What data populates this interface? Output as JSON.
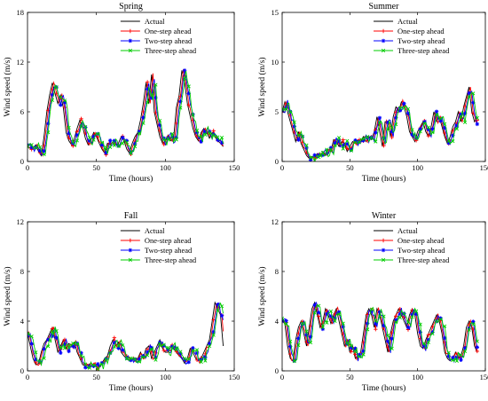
{
  "chart_data": [
    {
      "type": "line",
      "title": "Spring",
      "xlabel": "Time (hours)",
      "ylabel": "Wind speed (m/s)",
      "xlim": [
        0,
        150
      ],
      "ylim": [
        0,
        18
      ],
      "xticks": [
        0,
        50,
        100,
        150
      ],
      "yticks": [
        0,
        6,
        12,
        18
      ],
      "grid": false,
      "legend_position": "top-right",
      "anchors": [
        [
          0,
          1.8
        ],
        [
          3,
          1.5
        ],
        [
          6,
          2.0
        ],
        [
          8,
          1.2
        ],
        [
          10,
          0.7
        ],
        [
          12,
          3.0
        ],
        [
          14,
          6.0
        ],
        [
          16,
          8.0
        ],
        [
          18,
          9.5
        ],
        [
          20,
          8.2
        ],
        [
          22,
          7.0
        ],
        [
          24,
          8.0
        ],
        [
          26,
          6.5
        ],
        [
          28,
          3.5
        ],
        [
          30,
          2.5
        ],
        [
          32,
          2.0
        ],
        [
          34,
          2.8
        ],
        [
          36,
          4.0
        ],
        [
          38,
          5.0
        ],
        [
          40,
          4.2
        ],
        [
          42,
          2.8
        ],
        [
          44,
          2.0
        ],
        [
          46,
          2.6
        ],
        [
          48,
          3.5
        ],
        [
          50,
          3.0
        ],
        [
          52,
          2.2
        ],
        [
          54,
          1.5
        ],
        [
          56,
          1.0
        ],
        [
          58,
          2.2
        ],
        [
          60,
          2.0
        ],
        [
          62,
          2.4
        ],
        [
          64,
          2.0
        ],
        [
          66,
          2.2
        ],
        [
          68,
          3.0
        ],
        [
          70,
          2.5
        ],
        [
          72,
          1.5
        ],
        [
          74,
          1.0
        ],
        [
          76,
          2.2
        ],
        [
          78,
          3.0
        ],
        [
          80,
          3.5
        ],
        [
          82,
          5.0
        ],
        [
          84,
          7.0
        ],
        [
          86,
          9.5
        ],
        [
          88,
          7.0
        ],
        [
          90,
          10.5
        ],
        [
          92,
          6.0
        ],
        [
          94,
          4.5
        ],
        [
          96,
          3.0
        ],
        [
          98,
          2.2
        ],
        [
          100,
          2.5
        ],
        [
          102,
          3.2
        ],
        [
          104,
          2.5
        ],
        [
          106,
          2.8
        ],
        [
          108,
          6.5
        ],
        [
          110,
          8.0
        ],
        [
          112,
          11.0
        ],
        [
          114,
          9.5
        ],
        [
          116,
          7.0
        ],
        [
          118,
          5.5
        ],
        [
          120,
          4.0
        ],
        [
          122,
          3.0
        ],
        [
          124,
          2.5
        ],
        [
          126,
          3.5
        ],
        [
          128,
          4.0
        ],
        [
          130,
          3.5
        ],
        [
          132,
          2.8
        ],
        [
          134,
          3.5
        ],
        [
          136,
          3.0
        ],
        [
          138,
          2.5
        ],
        [
          140,
          2.2
        ],
        [
          142,
          1.8
        ]
      ],
      "series": [
        {
          "name": "Actual",
          "color": "#000000",
          "marker": "none",
          "shift": 0,
          "seed": 0,
          "noise": 0
        },
        {
          "name": "One-step ahead",
          "color": "#ff0000",
          "marker": "plus",
          "shift": 1,
          "seed": 11,
          "noise": 0.05
        },
        {
          "name": "Two-step ahead",
          "color": "#0000ff",
          "marker": "star",
          "shift": 1.8,
          "seed": 23,
          "noise": 0.08
        },
        {
          "name": "Three-step ahead",
          "color": "#00cc00",
          "marker": "x",
          "shift": 2.6,
          "seed": 37,
          "noise": 0.1
        }
      ]
    },
    {
      "type": "line",
      "title": "Summer",
      "xlabel": "Time (hours)",
      "ylabel": "Wind speed (m/s)",
      "xlim": [
        0,
        150
      ],
      "ylim": [
        0,
        15
      ],
      "xticks": [
        0,
        50,
        100,
        150
      ],
      "yticks": [
        0,
        5,
        10,
        15
      ],
      "grid": false,
      "legend_position": "top-right",
      "anchors": [
        [
          0,
          5.0
        ],
        [
          2,
          6.0
        ],
        [
          4,
          5.0
        ],
        [
          6,
          4.0
        ],
        [
          8,
          3.0
        ],
        [
          10,
          2.0
        ],
        [
          12,
          3.0
        ],
        [
          14,
          1.8
        ],
        [
          16,
          1.2
        ],
        [
          18,
          0.6
        ],
        [
          20,
          0.3
        ],
        [
          22,
          0.5
        ],
        [
          24,
          0.4
        ],
        [
          26,
          0.8
        ],
        [
          28,
          0.5
        ],
        [
          30,
          1.0
        ],
        [
          32,
          0.6
        ],
        [
          34,
          1.2
        ],
        [
          36,
          1.0
        ],
        [
          38,
          2.2
        ],
        [
          40,
          2.0
        ],
        [
          42,
          1.5
        ],
        [
          44,
          2.0
        ],
        [
          46,
          1.8
        ],
        [
          48,
          1.0
        ],
        [
          50,
          1.5
        ],
        [
          52,
          2.0
        ],
        [
          54,
          1.8
        ],
        [
          56,
          2.2
        ],
        [
          58,
          2.0
        ],
        [
          60,
          2.5
        ],
        [
          62,
          2.0
        ],
        [
          64,
          2.5
        ],
        [
          66,
          2.2
        ],
        [
          68,
          3.0
        ],
        [
          70,
          4.5
        ],
        [
          72,
          3.0
        ],
        [
          74,
          1.5
        ],
        [
          76,
          4.0
        ],
        [
          78,
          4.0
        ],
        [
          80,
          2.5
        ],
        [
          82,
          4.5
        ],
        [
          84,
          5.5
        ],
        [
          86,
          5.0
        ],
        [
          88,
          6.0
        ],
        [
          90,
          5.5
        ],
        [
          92,
          4.5
        ],
        [
          94,
          3.0
        ],
        [
          96,
          2.5
        ],
        [
          98,
          2.0
        ],
        [
          100,
          3.0
        ],
        [
          102,
          3.5
        ],
        [
          104,
          4.0
        ],
        [
          106,
          3.0
        ],
        [
          108,
          2.5
        ],
        [
          110,
          3.5
        ],
        [
          112,
          5.0
        ],
        [
          114,
          4.0
        ],
        [
          116,
          4.5
        ],
        [
          118,
          3.5
        ],
        [
          120,
          2.5
        ],
        [
          122,
          1.8
        ],
        [
          124,
          2.5
        ],
        [
          126,
          3.5
        ],
        [
          128,
          4.0
        ],
        [
          130,
          5.0
        ],
        [
          132,
          4.0
        ],
        [
          134,
          5.5
        ],
        [
          136,
          6.5
        ],
        [
          138,
          7.5
        ],
        [
          140,
          5.0
        ],
        [
          142,
          4.0
        ],
        [
          144,
          4.5
        ]
      ],
      "series": [
        {
          "name": "Actual",
          "color": "#000000",
          "marker": "none",
          "shift": 0,
          "seed": 0,
          "noise": 0
        },
        {
          "name": "One-step ahead",
          "color": "#ff0000",
          "marker": "plus",
          "shift": 1,
          "seed": 13,
          "noise": 0.05
        },
        {
          "name": "Two-step ahead",
          "color": "#0000ff",
          "marker": "star",
          "shift": 1.8,
          "seed": 29,
          "noise": 0.08
        },
        {
          "name": "Three-step ahead",
          "color": "#00cc00",
          "marker": "x",
          "shift": 2.6,
          "seed": 41,
          "noise": 0.1
        }
      ]
    },
    {
      "type": "line",
      "title": "Fall",
      "xlabel": "Time (hours)",
      "ylabel": "Wind speed (m/s)",
      "xlim": [
        0,
        150
      ],
      "ylim": [
        0,
        12
      ],
      "xticks": [
        0,
        50,
        100,
        150
      ],
      "yticks": [
        0,
        4,
        8,
        12
      ],
      "grid": false,
      "legend_position": "top-right",
      "anchors": [
        [
          0,
          3.0
        ],
        [
          2,
          2.0
        ],
        [
          4,
          1.0
        ],
        [
          6,
          0.5
        ],
        [
          8,
          0.6
        ],
        [
          10,
          1.5
        ],
        [
          12,
          2.2
        ],
        [
          14,
          2.5
        ],
        [
          16,
          3.0
        ],
        [
          18,
          3.5
        ],
        [
          20,
          2.5
        ],
        [
          22,
          1.5
        ],
        [
          24,
          2.0
        ],
        [
          26,
          2.5
        ],
        [
          28,
          1.8
        ],
        [
          30,
          2.2
        ],
        [
          32,
          2.0
        ],
        [
          34,
          2.3
        ],
        [
          36,
          1.5
        ],
        [
          38,
          1.0
        ],
        [
          40,
          0.5
        ],
        [
          42,
          0.4
        ],
        [
          44,
          0.5
        ],
        [
          46,
          0.6
        ],
        [
          48,
          0.5
        ],
        [
          50,
          0.3
        ],
        [
          52,
          0.4
        ],
        [
          54,
          0.6
        ],
        [
          56,
          1.0
        ],
        [
          58,
          1.2
        ],
        [
          60,
          2.0
        ],
        [
          62,
          2.5
        ],
        [
          64,
          2.0
        ],
        [
          66,
          2.3
        ],
        [
          68,
          1.5
        ],
        [
          70,
          1.2
        ],
        [
          72,
          1.0
        ],
        [
          74,
          0.8
        ],
        [
          76,
          1.0
        ],
        [
          78,
          0.9
        ],
        [
          80,
          1.0
        ],
        [
          82,
          1.5
        ],
        [
          84,
          1.0
        ],
        [
          86,
          1.8
        ],
        [
          88,
          2.0
        ],
        [
          90,
          1.0
        ],
        [
          92,
          1.5
        ],
        [
          94,
          2.0
        ],
        [
          96,
          2.5
        ],
        [
          98,
          1.8
        ],
        [
          100,
          1.5
        ],
        [
          102,
          1.5
        ],
        [
          104,
          2.0
        ],
        [
          106,
          1.8
        ],
        [
          108,
          1.5
        ],
        [
          110,
          1.2
        ],
        [
          112,
          1.0
        ],
        [
          114,
          0.6
        ],
        [
          116,
          1.0
        ],
        [
          118,
          1.8
        ],
        [
          120,
          1.5
        ],
        [
          122,
          1.0
        ],
        [
          124,
          0.8
        ],
        [
          126,
          1.0
        ],
        [
          128,
          1.5
        ],
        [
          130,
          2.0
        ],
        [
          132,
          2.5
        ],
        [
          134,
          4.0
        ],
        [
          136,
          5.5
        ],
        [
          138,
          5.0
        ],
        [
          140,
          4.5
        ],
        [
          142,
          2.0
        ]
      ],
      "series": [
        {
          "name": "Actual",
          "color": "#000000",
          "marker": "none",
          "shift": 0,
          "seed": 0,
          "noise": 0
        },
        {
          "name": "One-step ahead",
          "color": "#ff0000",
          "marker": "plus",
          "shift": 1,
          "seed": 17,
          "noise": 0.06
        },
        {
          "name": "Two-step ahead",
          "color": "#0000ff",
          "marker": "star",
          "shift": 1.8,
          "seed": 31,
          "noise": 0.09
        },
        {
          "name": "Three-step ahead",
          "color": "#00cc00",
          "marker": "x",
          "shift": 2.6,
          "seed": 43,
          "noise": 0.11
        }
      ]
    },
    {
      "type": "line",
      "title": "Winter",
      "xlabel": "Time (hours)",
      "ylabel": "Wind speed (m/s)",
      "xlim": [
        0,
        150
      ],
      "ylim": [
        0,
        12
      ],
      "xticks": [
        0,
        50,
        100,
        150
      ],
      "yticks": [
        0,
        4,
        8,
        12
      ],
      "grid": false,
      "legend_position": "top-right",
      "anchors": [
        [
          0,
          4.0
        ],
        [
          2,
          3.8
        ],
        [
          4,
          2.0
        ],
        [
          6,
          1.0
        ],
        [
          8,
          0.8
        ],
        [
          10,
          2.5
        ],
        [
          12,
          3.5
        ],
        [
          14,
          4.0
        ],
        [
          16,
          3.0
        ],
        [
          18,
          2.0
        ],
        [
          20,
          3.5
        ],
        [
          22,
          5.0
        ],
        [
          24,
          5.5
        ],
        [
          26,
          4.5
        ],
        [
          28,
          3.5
        ],
        [
          30,
          4.0
        ],
        [
          32,
          5.0
        ],
        [
          34,
          4.5
        ],
        [
          36,
          3.8
        ],
        [
          38,
          4.5
        ],
        [
          40,
          5.0
        ],
        [
          42,
          4.0
        ],
        [
          44,
          3.0
        ],
        [
          46,
          2.0
        ],
        [
          48,
          2.5
        ],
        [
          50,
          1.5
        ],
        [
          52,
          2.0
        ],
        [
          54,
          1.0
        ],
        [
          56,
          1.2
        ],
        [
          58,
          1.5
        ],
        [
          60,
          3.0
        ],
        [
          62,
          4.5
        ],
        [
          64,
          5.0
        ],
        [
          66,
          4.5
        ],
        [
          68,
          3.5
        ],
        [
          70,
          5.0
        ],
        [
          72,
          4.5
        ],
        [
          74,
          3.5
        ],
        [
          76,
          2.5
        ],
        [
          78,
          1.5
        ],
        [
          80,
          3.0
        ],
        [
          82,
          4.0
        ],
        [
          84,
          4.5
        ],
        [
          86,
          5.0
        ],
        [
          88,
          4.5
        ],
        [
          90,
          4.0
        ],
        [
          92,
          3.5
        ],
        [
          94,
          4.5
        ],
        [
          96,
          5.0
        ],
        [
          98,
          4.5
        ],
        [
          100,
          3.0
        ],
        [
          102,
          2.0
        ],
        [
          104,
          1.8
        ],
        [
          106,
          2.5
        ],
        [
          108,
          3.0
        ],
        [
          110,
          3.5
        ],
        [
          112,
          4.0
        ],
        [
          114,
          4.5
        ],
        [
          116,
          4.0
        ],
        [
          118,
          3.0
        ],
        [
          120,
          1.5
        ],
        [
          122,
          1.0
        ],
        [
          124,
          0.8
        ],
        [
          126,
          1.0
        ],
        [
          128,
          1.5
        ],
        [
          130,
          1.0
        ],
        [
          132,
          1.2
        ],
        [
          134,
          2.0
        ],
        [
          136,
          3.5
        ],
        [
          138,
          4.0
        ],
        [
          140,
          3.5
        ],
        [
          142,
          2.0
        ],
        [
          144,
          1.5
        ]
      ],
      "series": [
        {
          "name": "Actual",
          "color": "#000000",
          "marker": "none",
          "shift": 0,
          "seed": 0,
          "noise": 0
        },
        {
          "name": "One-step ahead",
          "color": "#ff0000",
          "marker": "plus",
          "shift": 1,
          "seed": 19,
          "noise": 0.06
        },
        {
          "name": "Two-step ahead",
          "color": "#0000ff",
          "marker": "star",
          "shift": 1.8,
          "seed": 37,
          "noise": 0.09
        },
        {
          "name": "Three-step ahead",
          "color": "#00cc00",
          "marker": "x",
          "shift": 2.6,
          "seed": 47,
          "noise": 0.11
        }
      ]
    }
  ]
}
